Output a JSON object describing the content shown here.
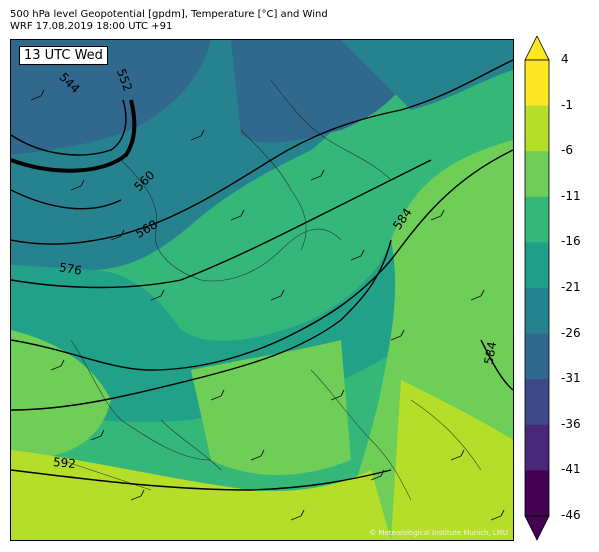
{
  "header": {
    "title_line1": "500 hPa level Geopotential [gpdm], Temperature [°C] and Wind",
    "title_line2": "WRF 17.08.2019 18:00 UTC +91"
  },
  "map": {
    "time_label": "13 UTC Wed",
    "credit": "© Meteorological Institute Munich, LMU",
    "contour_labels": [
      "544",
      "552",
      "560",
      "568",
      "576",
      "584",
      "584",
      "592"
    ]
  },
  "colorbar": {
    "ticks": [
      "4",
      "-1",
      "-6",
      "-11",
      "-16",
      "-21",
      "-26",
      "-31",
      "-36",
      "-41",
      "-46"
    ],
    "colors": [
      "#fde725",
      "#b5de2b",
      "#6ece58",
      "#35b779",
      "#1f9e89",
      "#26828e",
      "#31688e",
      "#3e4989",
      "#482878",
      "#440154"
    ],
    "extend_top": "#fde725",
    "extend_bottom": "#440154"
  }
}
